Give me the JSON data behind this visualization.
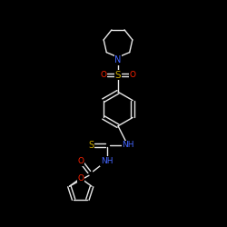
{
  "bg_color": "#000000",
  "line_color": "#e8e8e8",
  "atom_colors": {
    "N": "#4466ff",
    "O": "#ff2200",
    "S": "#ccaa00",
    "C": "#e8e8e8"
  },
  "lw": 1.0,
  "fs": 6.5
}
